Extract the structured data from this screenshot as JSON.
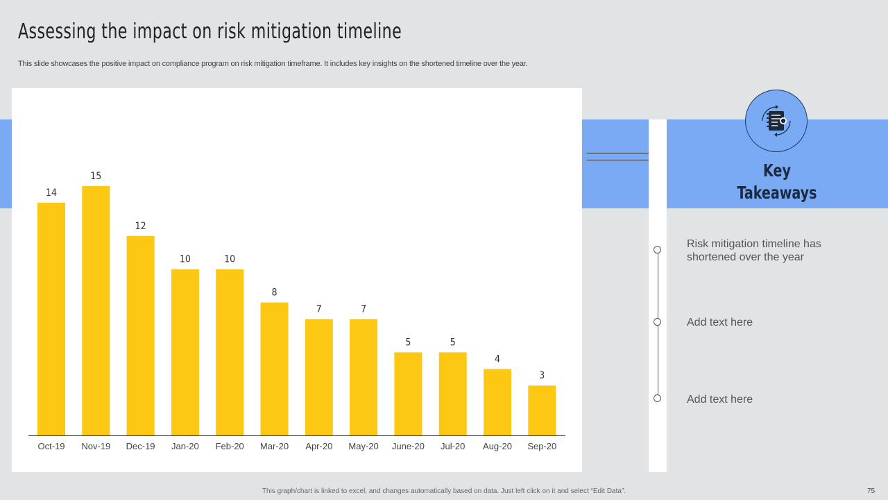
{
  "slide": {
    "title": "Assessing the impact on risk mitigation timeline",
    "subtitle": "This slide showcases the positive impact on compliance program on risk mitigation timeframe. It includes key insights on the shortened timeline over the year.",
    "footer": "This graph/chart is linked to excel, and changes automatically based on data. Just left click on it and select “Edit Data”.",
    "page_number": "75"
  },
  "colors": {
    "background": "#e2e3e5",
    "accent_blue": "#7aaaf4",
    "bar_yellow": "#fcc813",
    "panel_white": "#ffffff",
    "dark_navy": "#1b2a3d"
  },
  "takeaways": {
    "title_line1": "Key",
    "title_line2": "Takeaways",
    "icon": "notebook-icon",
    "items": [
      "Risk mitigation timeline has shortened over the year",
      "Add text here",
      "Add text here"
    ]
  },
  "chart_data": {
    "type": "bar",
    "title": "",
    "xlabel": "",
    "ylabel": "",
    "categories": [
      "Oct-19",
      "Nov-19",
      "Dec-19",
      "Jan-20",
      "Feb-20",
      "Mar-20",
      "Apr-20",
      "May-20",
      "June-20",
      "Jul-20",
      "Aug-20",
      "Sep-20"
    ],
    "values": [
      14,
      15,
      12,
      10,
      10,
      8,
      7,
      7,
      5,
      5,
      4,
      3
    ],
    "ylim": [
      0,
      15
    ],
    "grid": false,
    "legend": "none",
    "data_labels": true
  }
}
